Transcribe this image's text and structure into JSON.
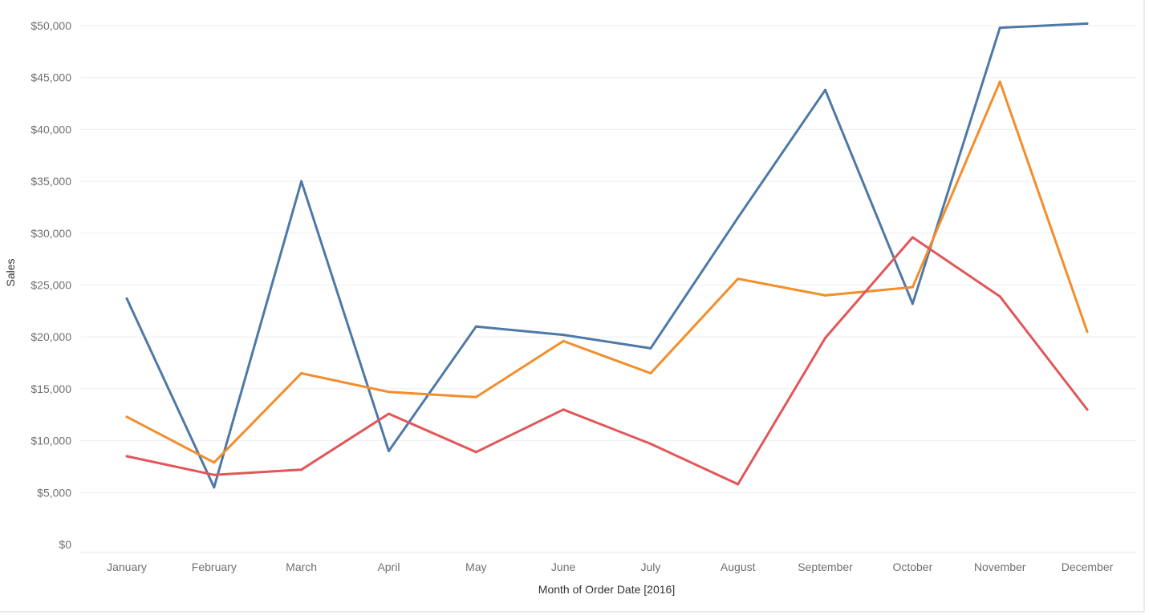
{
  "chart_data": {
    "type": "line",
    "xlabel": "Month of Order Date [2016]",
    "ylabel": "Sales",
    "categories": [
      "January",
      "February",
      "March",
      "April",
      "May",
      "June",
      "July",
      "August",
      "September",
      "October",
      "November",
      "December"
    ],
    "y_ticks": [
      "$0",
      "$5,000",
      "$10,000",
      "$15,000",
      "$20,000",
      "$25,000",
      "$30,000",
      "$35,000",
      "$40,000",
      "$45,000",
      "$50,000"
    ],
    "ylim": [
      0,
      50000
    ],
    "grid": true,
    "legend": "none",
    "series": [
      {
        "color": "#4e79a7",
        "values": [
          23700,
          5500,
          35000,
          9000,
          21000,
          20200,
          18900,
          31500,
          43800,
          23200,
          49800,
          50200
        ]
      },
      {
        "color": "#f28e2b",
        "values": [
          12300,
          7900,
          16500,
          14700,
          14200,
          19600,
          16500,
          25600,
          24000,
          24800,
          44600,
          20500
        ]
      },
      {
        "color": "#e15759",
        "values": [
          8500,
          6700,
          7200,
          12600,
          8900,
          13000,
          9700,
          5800,
          19900,
          29600,
          23900,
          13000
        ]
      }
    ]
  }
}
